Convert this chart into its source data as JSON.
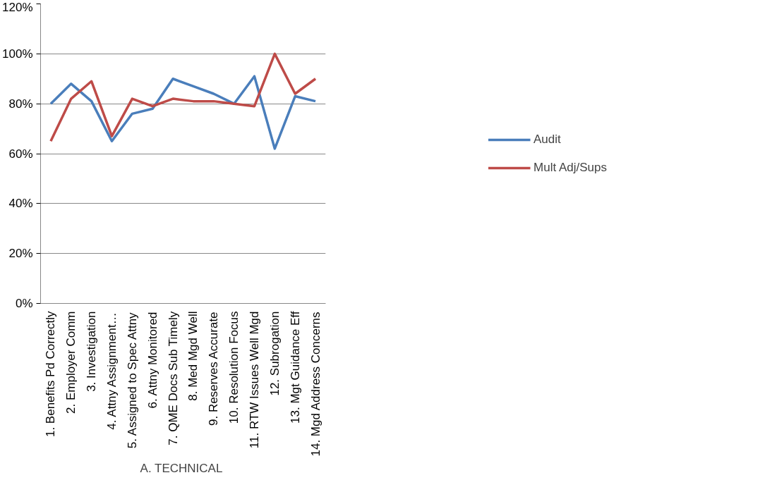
{
  "chart_data": {
    "type": "line",
    "categories": [
      "1. Benefits Pd Correctly",
      "2. Employer Comm",
      "3. Investigation",
      "4. Attny Assignment…",
      "5. Assigned to Spec Attny",
      "6. Attny Monitored",
      "7. QME Docs Sub Timely",
      "8. Med Mgd Well",
      "9. Reserves Accurate",
      "10. Resolution Focus",
      "11. RTW Issues Well Mgd",
      "12. Subrogation",
      "13. Mgt Guidance Eff",
      "14. Mgd Address Concerns"
    ],
    "xlabel": "A.  TECHNICAL",
    "series": [
      {
        "name": "Audit",
        "color": "#4a7ebb",
        "values": [
          80,
          88,
          81,
          65,
          76,
          78,
          90,
          87,
          84,
          80,
          91,
          62,
          83,
          81
        ]
      },
      {
        "name": "Mult Adj/Sups",
        "color": "#be4b48",
        "values": [
          65,
          82,
          89,
          67,
          82,
          79,
          82,
          81,
          81,
          80,
          79,
          100,
          84,
          90
        ]
      }
    ],
    "ylim": [
      0,
      120
    ],
    "yticks": [
      {
        "value": 0,
        "label": "0%"
      },
      {
        "value": 20,
        "label": "20%"
      },
      {
        "value": 40,
        "label": "40%"
      },
      {
        "value": 60,
        "label": "60%"
      },
      {
        "value": 80,
        "label": "80%"
      },
      {
        "value": 100,
        "label": "100%"
      },
      {
        "value": 120,
        "label": "120%"
      }
    ],
    "grid": "y",
    "legend": "right",
    "marker": "none",
    "line_style": "solid"
  }
}
